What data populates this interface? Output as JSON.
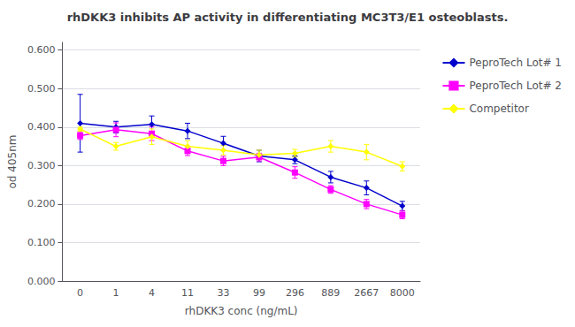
{
  "chart_data": {
    "type": "line",
    "title": "rhDKK3 inhibits AP activity in differentiating MC3T3/E1 osteoblasts.",
    "xlabel": "rhDKK3 conc (ng/mL)",
    "ylabel": "od 405nm",
    "categories": [
      "0",
      "1",
      "4",
      "11",
      "33",
      "99",
      "296",
      "889",
      "2667",
      "8000"
    ],
    "ylim": [
      0.0,
      0.62
    ],
    "yticks": [
      {
        "value": 0.0,
        "label": "0.000"
      },
      {
        "value": 0.1,
        "label": "0.100"
      },
      {
        "value": 0.2,
        "label": "0.200"
      },
      {
        "value": 0.3,
        "label": "0.300"
      },
      {
        "value": 0.4,
        "label": "0.400"
      },
      {
        "value": 0.5,
        "label": "0.500"
      },
      {
        "value": 0.6,
        "label": "0.600"
      }
    ],
    "grid": true,
    "legend": "right",
    "series": [
      {
        "name": "PeproTech Lot# 1",
        "color": "#0000CC",
        "marker": "diamond",
        "values": [
          0.41,
          0.4,
          0.407,
          0.39,
          0.358,
          0.325,
          0.315,
          0.27,
          0.242,
          0.195
        ],
        "yerr": [
          0.075,
          0.015,
          0.022,
          0.02,
          0.018,
          0.015,
          0.01,
          0.015,
          0.018,
          0.012
        ]
      },
      {
        "name": "PeproTech Lot# 2",
        "color": "#FF00FF",
        "marker": "square",
        "values": [
          0.378,
          0.393,
          0.383,
          0.338,
          0.312,
          0.322,
          0.282,
          0.238,
          0.2,
          0.172
        ],
        "yerr": [
          0.01,
          0.018,
          0.018,
          0.012,
          0.012,
          0.01,
          0.015,
          0.01,
          0.012,
          0.01
        ]
      },
      {
        "name": "Competitor",
        "color": "#FFFF00",
        "marker": "diamond",
        "values": [
          0.395,
          0.35,
          0.375,
          0.35,
          0.34,
          0.328,
          0.332,
          0.35,
          0.335,
          0.298
        ],
        "yerr": [
          0.005,
          0.01,
          0.02,
          0.015,
          0.012,
          0.012,
          0.01,
          0.015,
          0.02,
          0.012
        ]
      }
    ]
  }
}
